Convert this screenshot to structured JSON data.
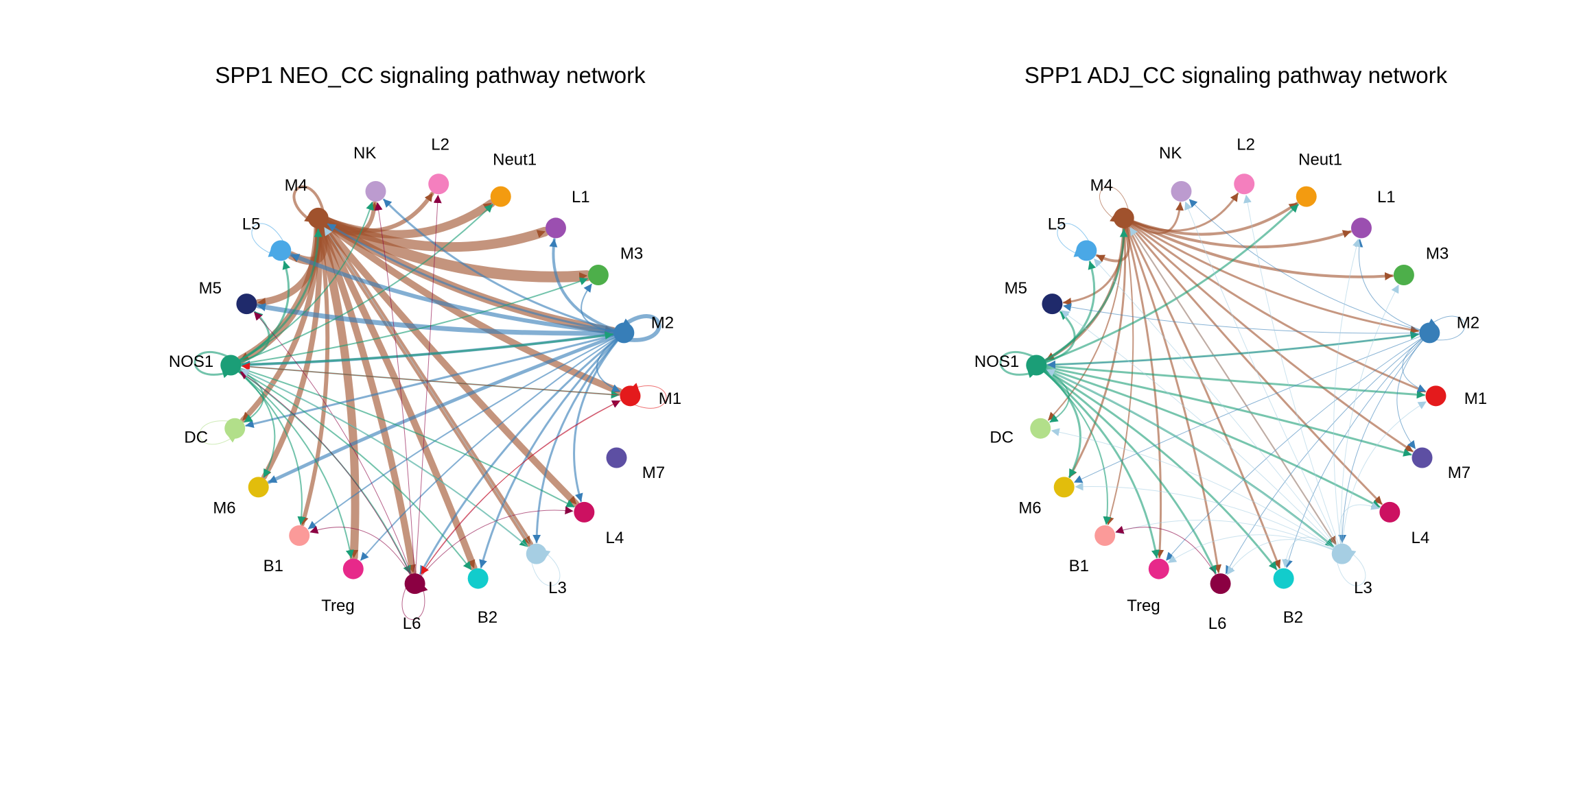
{
  "panels": [
    {
      "title": "SPP1 NEO_CC signaling pathway network",
      "nodes": [
        {
          "id": "M4",
          "label": "M4",
          "color": "#a0522d"
        },
        {
          "id": "NK",
          "label": "NK",
          "color": "#bc9bcf"
        },
        {
          "id": "L2",
          "label": "L2",
          "color": "#f47fbe"
        },
        {
          "id": "Neut1",
          "label": "Neut1",
          "color": "#f39b10"
        },
        {
          "id": "L1",
          "label": "L1",
          "color": "#9b4fb0"
        },
        {
          "id": "M3",
          "label": "M3",
          "color": "#4daf4a"
        },
        {
          "id": "M2",
          "label": "M2",
          "color": "#377eb8"
        },
        {
          "id": "M1",
          "label": "M1",
          "color": "#e41a1c"
        },
        {
          "id": "M7",
          "label": "M7",
          "color": "#5d4fa3"
        },
        {
          "id": "L4",
          "label": "L4",
          "color": "#cc1161"
        },
        {
          "id": "L3",
          "label": "L3",
          "color": "#a6cee3"
        },
        {
          "id": "B2",
          "label": "B2",
          "color": "#12cccc"
        },
        {
          "id": "L6",
          "label": "L6",
          "color": "#8b0042"
        },
        {
          "id": "Treg",
          "label": "Treg",
          "color": "#e7298a"
        },
        {
          "id": "B1",
          "label": "B1",
          "color": "#fb9a99"
        },
        {
          "id": "M6",
          "label": "M6",
          "color": "#e2bd0c"
        },
        {
          "id": "DC",
          "label": "DC",
          "color": "#b2df8a"
        },
        {
          "id": "NOS1",
          "label": "NOS1",
          "color": "#1b9e77"
        },
        {
          "id": "M5",
          "label": "M5",
          "color": "#1f2a6b"
        },
        {
          "id": "L5",
          "label": "L5",
          "color": "#4aa8e6"
        }
      ],
      "edges": [
        {
          "source": "M4",
          "target": "M4",
          "weight": 4
        },
        {
          "source": "M4",
          "target": "NK",
          "weight": 6
        },
        {
          "source": "M4",
          "target": "L2",
          "weight": 6
        },
        {
          "source": "M4",
          "target": "Neut1",
          "weight": 12
        },
        {
          "source": "M4",
          "target": "L1",
          "weight": 14
        },
        {
          "source": "M4",
          "target": "M3",
          "weight": 16
        },
        {
          "source": "M4",
          "target": "M2",
          "weight": 12
        },
        {
          "source": "M4",
          "target": "M1",
          "weight": 10
        },
        {
          "source": "M4",
          "target": "L4",
          "weight": 10
        },
        {
          "source": "M4",
          "target": "L3",
          "weight": 9
        },
        {
          "source": "M4",
          "target": "B2",
          "weight": 10
        },
        {
          "source": "M4",
          "target": "L6",
          "weight": 10
        },
        {
          "source": "M4",
          "target": "Treg",
          "weight": 12
        },
        {
          "source": "M4",
          "target": "B1",
          "weight": 6
        },
        {
          "source": "M4",
          "target": "M6",
          "weight": 8
        },
        {
          "source": "M4",
          "target": "DC",
          "weight": 8
        },
        {
          "source": "M4",
          "target": "NOS1",
          "weight": 12
        },
        {
          "source": "M4",
          "target": "M5",
          "weight": 10
        },
        {
          "source": "M4",
          "target": "L5",
          "weight": 12
        },
        {
          "source": "M2",
          "target": "M2",
          "weight": 6
        },
        {
          "source": "M2",
          "target": "L1",
          "weight": 4
        },
        {
          "source": "M2",
          "target": "M3",
          "weight": 2
        },
        {
          "source": "M2",
          "target": "NK",
          "weight": 3
        },
        {
          "source": "M2",
          "target": "M4",
          "weight": 3
        },
        {
          "source": "M2",
          "target": "L5",
          "weight": 6
        },
        {
          "source": "M2",
          "target": "M5",
          "weight": 7
        },
        {
          "source": "M2",
          "target": "NOS1",
          "weight": 4
        },
        {
          "source": "M2",
          "target": "DC",
          "weight": 3
        },
        {
          "source": "M2",
          "target": "M6",
          "weight": 5
        },
        {
          "source": "M2",
          "target": "B1",
          "weight": 2
        },
        {
          "source": "M2",
          "target": "Treg",
          "weight": 2
        },
        {
          "source": "M2",
          "target": "L6",
          "weight": 3
        },
        {
          "source": "M2",
          "target": "B2",
          "weight": 3
        },
        {
          "source": "M2",
          "target": "L3",
          "weight": 3
        },
        {
          "source": "M2",
          "target": "L4",
          "weight": 3
        },
        {
          "source": "M2",
          "target": "M1",
          "weight": 2
        },
        {
          "source": "NOS1",
          "target": "NOS1",
          "weight": 3
        },
        {
          "source": "NOS1",
          "target": "M4",
          "weight": 3
        },
        {
          "source": "NOS1",
          "target": "NK",
          "weight": 2
        },
        {
          "source": "NOS1",
          "target": "Neut1",
          "weight": 2
        },
        {
          "source": "NOS1",
          "target": "M3",
          "weight": 2
        },
        {
          "source": "NOS1",
          "target": "M2",
          "weight": 3
        },
        {
          "source": "NOS1",
          "target": "M1",
          "weight": 2
        },
        {
          "source": "NOS1",
          "target": "L4",
          "weight": 2
        },
        {
          "source": "NOS1",
          "target": "L3",
          "weight": 2
        },
        {
          "source": "NOS1",
          "target": "B2",
          "weight": 2
        },
        {
          "source": "NOS1",
          "target": "L6",
          "weight": 2
        },
        {
          "source": "NOS1",
          "target": "Treg",
          "weight": 2
        },
        {
          "source": "NOS1",
          "target": "B1",
          "weight": 2
        },
        {
          "source": "NOS1",
          "target": "M6",
          "weight": 2
        },
        {
          "source": "NOS1",
          "target": "DC",
          "weight": 2
        },
        {
          "source": "NOS1",
          "target": "M5",
          "weight": 3
        },
        {
          "source": "NOS1",
          "target": "L5",
          "weight": 3
        },
        {
          "source": "L6",
          "target": "L6",
          "weight": 1
        },
        {
          "source": "L6",
          "target": "NK",
          "weight": 1
        },
        {
          "source": "L6",
          "target": "L2",
          "weight": 1
        },
        {
          "source": "L6",
          "target": "M1",
          "weight": 1
        },
        {
          "source": "L6",
          "target": "L4",
          "weight": 1
        },
        {
          "source": "L6",
          "target": "NOS1",
          "weight": 1
        },
        {
          "source": "L6",
          "target": "B1",
          "weight": 1
        },
        {
          "source": "L6",
          "target": "M5",
          "weight": 1
        },
        {
          "source": "M1",
          "target": "M1",
          "weight": 1
        },
        {
          "source": "M1",
          "target": "NOS1",
          "weight": 1
        },
        {
          "source": "M1",
          "target": "L6",
          "weight": 1
        },
        {
          "source": "L3",
          "target": "L3",
          "weight": 1
        },
        {
          "source": "L3",
          "target": "NOS1",
          "weight": 1
        },
        {
          "source": "L3",
          "target": "M4",
          "weight": 1
        },
        {
          "source": "L5",
          "target": "L5",
          "weight": 1
        },
        {
          "source": "DC",
          "target": "DC",
          "weight": 1
        }
      ]
    },
    {
      "title": "SPP1 ADJ_CC signaling pathway network",
      "nodes": [
        {
          "id": "M4",
          "label": "M4",
          "color": "#a0522d"
        },
        {
          "id": "NK",
          "label": "NK",
          "color": "#bc9bcf"
        },
        {
          "id": "L2",
          "label": "L2",
          "color": "#f47fbe"
        },
        {
          "id": "Neut1",
          "label": "Neut1",
          "color": "#f39b10"
        },
        {
          "id": "L1",
          "label": "L1",
          "color": "#9b4fb0"
        },
        {
          "id": "M3",
          "label": "M3",
          "color": "#4daf4a"
        },
        {
          "id": "M2",
          "label": "M2",
          "color": "#377eb8"
        },
        {
          "id": "M1",
          "label": "M1",
          "color": "#e41a1c"
        },
        {
          "id": "M7",
          "label": "M7",
          "color": "#5d4fa3"
        },
        {
          "id": "L4",
          "label": "L4",
          "color": "#cc1161"
        },
        {
          "id": "L3",
          "label": "L3",
          "color": "#a6cee3"
        },
        {
          "id": "B2",
          "label": "B2",
          "color": "#12cccc"
        },
        {
          "id": "L6",
          "label": "L6",
          "color": "#8b0042"
        },
        {
          "id": "Treg",
          "label": "Treg",
          "color": "#e7298a"
        },
        {
          "id": "B1",
          "label": "B1",
          "color": "#fb9a99"
        },
        {
          "id": "M6",
          "label": "M6",
          "color": "#e2bd0c"
        },
        {
          "id": "DC",
          "label": "DC",
          "color": "#b2df8a"
        },
        {
          "id": "NOS1",
          "label": "NOS1",
          "color": "#1b9e77"
        },
        {
          "id": "M5",
          "label": "M5",
          "color": "#1f2a6b"
        },
        {
          "id": "L5",
          "label": "L5",
          "color": "#4aa8e6"
        }
      ],
      "edges": [
        {
          "source": "M4",
          "target": "M4",
          "weight": 1
        },
        {
          "source": "M4",
          "target": "NK",
          "weight": 3
        },
        {
          "source": "M4",
          "target": "L2",
          "weight": 3
        },
        {
          "source": "M4",
          "target": "Neut1",
          "weight": 4
        },
        {
          "source": "M4",
          "target": "L1",
          "weight": 4
        },
        {
          "source": "M4",
          "target": "M3",
          "weight": 4
        },
        {
          "source": "M4",
          "target": "M2",
          "weight": 3
        },
        {
          "source": "M4",
          "target": "M1",
          "weight": 3
        },
        {
          "source": "M4",
          "target": "M7",
          "weight": 3
        },
        {
          "source": "M4",
          "target": "L4",
          "weight": 3
        },
        {
          "source": "M4",
          "target": "L3",
          "weight": 2
        },
        {
          "source": "M4",
          "target": "B2",
          "weight": 3
        },
        {
          "source": "M4",
          "target": "L6",
          "weight": 3
        },
        {
          "source": "M4",
          "target": "Treg",
          "weight": 3
        },
        {
          "source": "M4",
          "target": "B1",
          "weight": 2
        },
        {
          "source": "M4",
          "target": "M6",
          "weight": 3
        },
        {
          "source": "M4",
          "target": "DC",
          "weight": 2
        },
        {
          "source": "M4",
          "target": "NOS1",
          "weight": 4
        },
        {
          "source": "M4",
          "target": "M5",
          "weight": 3
        },
        {
          "source": "M4",
          "target": "L5",
          "weight": 4
        },
        {
          "source": "NOS1",
          "target": "NOS1",
          "weight": 3
        },
        {
          "source": "NOS1",
          "target": "M4",
          "weight": 3
        },
        {
          "source": "NOS1",
          "target": "Neut1",
          "weight": 3
        },
        {
          "source": "NOS1",
          "target": "M2",
          "weight": 3
        },
        {
          "source": "NOS1",
          "target": "M1",
          "weight": 3
        },
        {
          "source": "NOS1",
          "target": "M7",
          "weight": 3
        },
        {
          "source": "NOS1",
          "target": "L4",
          "weight": 3
        },
        {
          "source": "NOS1",
          "target": "L3",
          "weight": 3
        },
        {
          "source": "NOS1",
          "target": "B2",
          "weight": 3
        },
        {
          "source": "NOS1",
          "target": "L6",
          "weight": 3
        },
        {
          "source": "NOS1",
          "target": "Treg",
          "weight": 3
        },
        {
          "source": "NOS1",
          "target": "B1",
          "weight": 2
        },
        {
          "source": "NOS1",
          "target": "M6",
          "weight": 3
        },
        {
          "source": "NOS1",
          "target": "DC",
          "weight": 2
        },
        {
          "source": "NOS1",
          "target": "M5",
          "weight": 3
        },
        {
          "source": "NOS1",
          "target": "L5",
          "weight": 3
        },
        {
          "source": "M2",
          "target": "M2",
          "weight": 1
        },
        {
          "source": "M2",
          "target": "L1",
          "weight": 1
        },
        {
          "source": "M2",
          "target": "NK",
          "weight": 1
        },
        {
          "source": "M2",
          "target": "M5",
          "weight": 1
        },
        {
          "source": "M2",
          "target": "NOS1",
          "weight": 1
        },
        {
          "source": "M2",
          "target": "M1",
          "weight": 1
        },
        {
          "source": "M2",
          "target": "M7",
          "weight": 1
        },
        {
          "source": "M2",
          "target": "L3",
          "weight": 1
        },
        {
          "source": "M2",
          "target": "B2",
          "weight": 1
        },
        {
          "source": "M2",
          "target": "L6",
          "weight": 1
        },
        {
          "source": "M2",
          "target": "Treg",
          "weight": 1
        },
        {
          "source": "M2",
          "target": "M6",
          "weight": 1
        },
        {
          "source": "L3",
          "target": "L3",
          "weight": 1
        },
        {
          "source": "L3",
          "target": "M4",
          "weight": 1
        },
        {
          "source": "L3",
          "target": "NK",
          "weight": 1
        },
        {
          "source": "L3",
          "target": "L2",
          "weight": 1
        },
        {
          "source": "L3",
          "target": "L1",
          "weight": 1
        },
        {
          "source": "L3",
          "target": "M3",
          "weight": 1
        },
        {
          "source": "L3",
          "target": "M1",
          "weight": 1
        },
        {
          "source": "L3",
          "target": "L4",
          "weight": 1
        },
        {
          "source": "L3",
          "target": "B2",
          "weight": 1
        },
        {
          "source": "L3",
          "target": "L6",
          "weight": 1
        },
        {
          "source": "L3",
          "target": "Treg",
          "weight": 1
        },
        {
          "source": "L3",
          "target": "B1",
          "weight": 1
        },
        {
          "source": "L3",
          "target": "M6",
          "weight": 1
        },
        {
          "source": "L3",
          "target": "DC",
          "weight": 1
        },
        {
          "source": "L3",
          "target": "NOS1",
          "weight": 1
        },
        {
          "source": "L3",
          "target": "M5",
          "weight": 1
        },
        {
          "source": "L3",
          "target": "L5",
          "weight": 1
        },
        {
          "source": "L5",
          "target": "L5",
          "weight": 1
        },
        {
          "source": "L6",
          "target": "B1",
          "weight": 1
        }
      ]
    }
  ]
}
